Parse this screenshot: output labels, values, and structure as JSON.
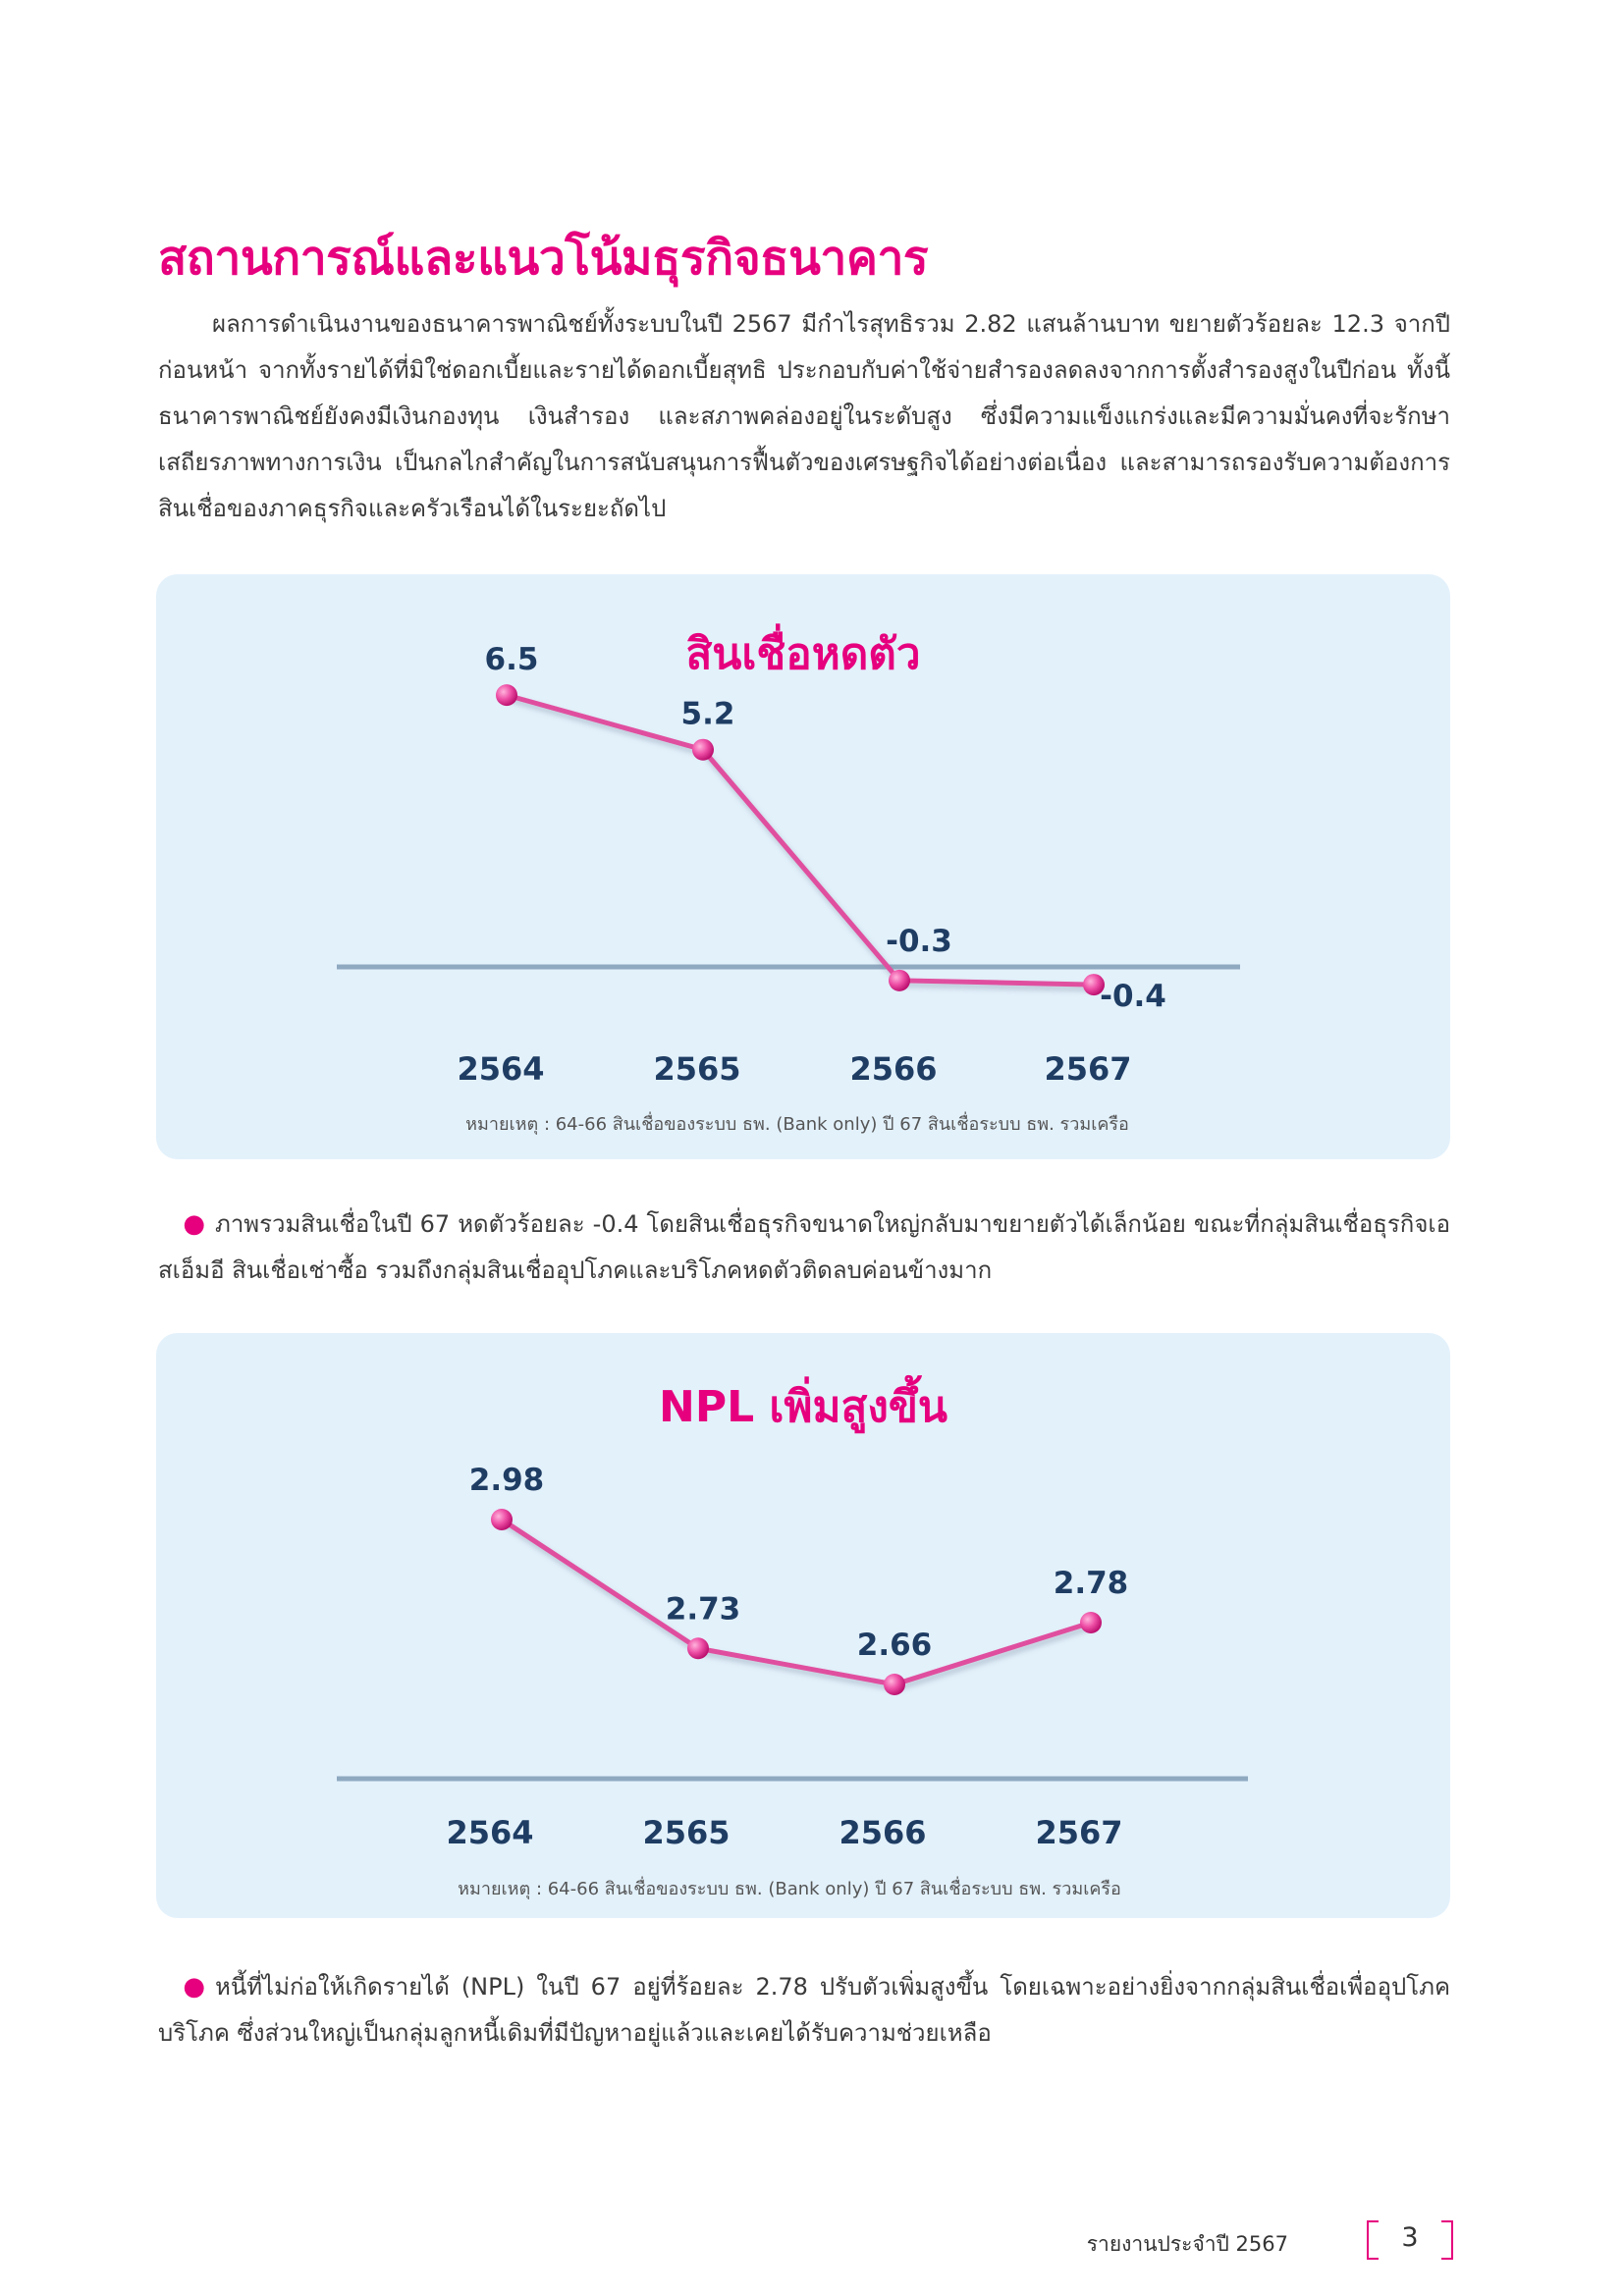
{
  "page": {
    "title": "สถานการณ์และแนวโน้มธุรกิจธนาคาร",
    "intro": "ผลการดำเนินงานของธนาคารพาณิชย์ทั้งระบบในปี 2567 มีกำไรสุทธิรวม 2.82 แสนล้านบาท ขยายตัวร้อยละ 12.3 จากปีก่อนหน้า จากทั้งรายได้ที่มิใช่ดอกเบี้ยและรายได้ดอกเบี้ยสุทธิ ประกอบกับค่าใช้จ่ายสำรองลดลงจากการตั้งสำรองสูงในปีก่อน ทั้งนี้ ธนาคารพาณิชย์ยังคงมีเงินกองทุน เงินสำรอง และสภาพคล่องอยู่ในระดับสูง ซึ่งมีความแข็งแกร่งและมีความมั่นคงที่จะรักษาเสถียรภาพทางการเงิน เป็นกลไกสำคัญในการสนับสนุนการฟื้นตัวของเศรษฐกิจได้อย่างต่อเนื่อง และสามารถรองรับความต้องการสินเชื่อของภาคธุรกิจและครัวเรือนได้ในระยะถัดไป",
    "bullet1": "ภาพรวมสินเชื่อในปี 67 หดตัวร้อยละ -0.4 โดยสินเชื่อธุรกิจขนาดใหญ่กลับมาขยายตัวได้เล็กน้อย ขณะที่กลุ่มสินเชื่อธุรกิจเอสเอ็มอี สินเชื่อเช่าซื้อ รวมถึงกลุ่มสินเชื่ออุปโภคและบริโภคหดตัวติดลบค่อนข้างมาก",
    "bullet2": "หนี้ที่ไม่ก่อให้เกิดรายได้ (NPL) ในปี 67 อยู่ที่ร้อยละ 2.78 ปรับตัวเพิ่มสูงขึ้น โดยเฉพาะอย่างยิ่งจากกลุ่มสินเชื่อเพื่ออุปโภคบริโภค ซึ่งส่วนใหญ่เป็นกลุ่มลูกหนี้เดิมที่มีปัญหาอยู่แล้วและเคยได้รับความช่วยเหลือ",
    "footer_text": "รายงานประจำปี 2567",
    "page_number": "3"
  },
  "colors": {
    "accent": "#e6007e",
    "label": "#1f3d63",
    "card_bg": "#e3f1fb",
    "baseline": "#8fa9c0",
    "line": "#e0509f"
  },
  "chart_data": [
    {
      "type": "line",
      "title": "สินเชื่อหดตัว",
      "categories": [
        "2564",
        "2565",
        "2566",
        "2567"
      ],
      "values": [
        6.5,
        5.2,
        -0.3,
        -0.4
      ],
      "labels": [
        "6.5",
        "5.2",
        "-0.3",
        "-0.4"
      ],
      "baseline_value": 0,
      "note": "หมายเหตุ : 64-66 สินเชื่อของระบบ ธพ. (Bank only) ปี 67 สินเชื่อระบบ ธพ. รวมเครือ",
      "grid": false
    },
    {
      "type": "line",
      "title": "NPL เพิ่มสูงขึ้น",
      "categories": [
        "2564",
        "2565",
        "2566",
        "2567"
      ],
      "values": [
        2.98,
        2.73,
        2.66,
        2.78
      ],
      "labels": [
        "2.98",
        "2.73",
        "2.66",
        "2.78"
      ],
      "note": "หมายเหตุ : 64-66 สินเชื่อของระบบ ธพ. (Bank only) ปี 67 สินเชื่อระบบ ธพ. รวมเครือ",
      "grid": false
    }
  ]
}
